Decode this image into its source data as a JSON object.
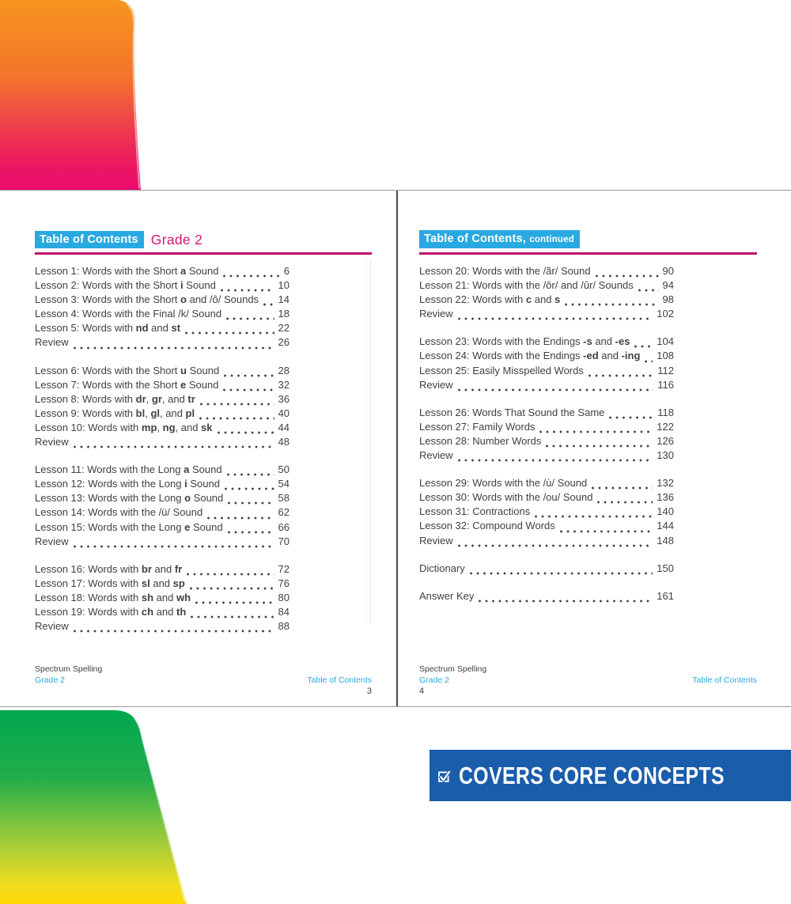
{
  "colors": {
    "cyan": "#29A9E1",
    "magenta_rule": "#C1116E",
    "pink_title": "#D4156F",
    "body_text": "#414042",
    "banner_blue": "#1A5DAB",
    "cover_top_gradient": [
      "#F7951F",
      "#F3752A",
      "#EF414B",
      "#EC1A5F",
      "#EB0A6F"
    ],
    "cover_bottom_gradient": [
      "#00A84F",
      "#22AD4A",
      "#A8CE38",
      "#F0DC1E",
      "#FFD905"
    ]
  },
  "left_page": {
    "header": {
      "badge": "Table of Contents",
      "title": "Grade 2"
    },
    "groups": [
      {
        "rows": [
          {
            "label": "Lesson 1: Words with the Short **a** Sound",
            "page": "6"
          },
          {
            "label": "Lesson 2: Words with the Short **i** Sound",
            "page": "10"
          },
          {
            "label": "Lesson 3: Words with the Short **o** and /ô/ Sounds",
            "page": "14"
          },
          {
            "label": "Lesson 4: Words with the Final /k/ Sound",
            "page": "18"
          },
          {
            "label": "Lesson 5: Words with **nd** and **st**",
            "page": "22"
          },
          {
            "label": "Review",
            "page": "26"
          }
        ]
      },
      {
        "rows": [
          {
            "label": "Lesson 6: Words with the Short **u** Sound",
            "page": "28"
          },
          {
            "label": "Lesson 7: Words with the Short **e** Sound",
            "page": "32"
          },
          {
            "label": "Lesson 8: Words with **dr**, **gr**, and **tr**",
            "page": "36"
          },
          {
            "label": "Lesson 9: Words with **bl**, **gl**, and **pl**",
            "page": "40"
          },
          {
            "label": "Lesson 10: Words with **mp**, **ng**, and **sk**",
            "page": "44"
          },
          {
            "label": "Review",
            "page": "48"
          }
        ]
      },
      {
        "rows": [
          {
            "label": "Lesson 11: Words with the Long **a** Sound",
            "page": "50"
          },
          {
            "label": "Lesson 12: Words with the Long **i** Sound",
            "page": "54"
          },
          {
            "label": "Lesson 13: Words with the Long **o** Sound",
            "page": "58"
          },
          {
            "label": "Lesson 14: Words with the /ü/ Sound",
            "page": "62"
          },
          {
            "label": "Lesson 15: Words with the Long **e** Sound",
            "page": "66"
          },
          {
            "label": "Review",
            "page": "70"
          }
        ]
      },
      {
        "rows": [
          {
            "label": "Lesson 16: Words with **br** and **fr**",
            "page": "72"
          },
          {
            "label": "Lesson 17: Words with **sl** and **sp**",
            "page": "76"
          },
          {
            "label": "Lesson 18: Words with **sh** and **wh**",
            "page": "80"
          },
          {
            "label": "Lesson 19: Words with **ch** and **th**",
            "page": "84"
          },
          {
            "label": "Review",
            "page": "88"
          }
        ]
      }
    ],
    "footer": {
      "series": "Spectrum Spelling",
      "grade": "Grade 2",
      "section": "Table of Contents",
      "page_number": "3"
    }
  },
  "right_page": {
    "header": {
      "badge": "Table of Contents,",
      "suffix": "continued"
    },
    "groups": [
      {
        "rows": [
          {
            "label": "Lesson 20: Words with the /ãr/ Sound",
            "page": "90"
          },
          {
            "label": "Lesson 21: Words with the /ôr/ and /ûr/ Sounds",
            "page": "94"
          },
          {
            "label": "Lesson 22: Words with **c** and **s**",
            "page": "98"
          },
          {
            "label": "Review",
            "page": "102"
          }
        ]
      },
      {
        "rows": [
          {
            "label": "Lesson 23: Words with the Endings **-s** and **-es**",
            "page": "104"
          },
          {
            "label": "Lesson 24: Words with the Endings **-ed** and **-ing**",
            "page": "108"
          },
          {
            "label": "Lesson 25: Easily Misspelled Words",
            "page": "112"
          },
          {
            "label": "Review",
            "page": "116"
          }
        ]
      },
      {
        "rows": [
          {
            "label": "Lesson 26: Words That Sound the Same",
            "page": "118"
          },
          {
            "label": "Lesson 27: Family Words",
            "page": "122"
          },
          {
            "label": "Lesson 28: Number Words",
            "page": "126"
          },
          {
            "label": "Review",
            "page": "130"
          }
        ]
      },
      {
        "rows": [
          {
            "label": "Lesson 29: Words with the /ù/ Sound",
            "page": "132"
          },
          {
            "label": "Lesson 30: Words with the /ou/ Sound",
            "page": "136"
          },
          {
            "label": "Lesson 31: Contractions",
            "page": "140"
          },
          {
            "label": "Lesson 32: Compound Words",
            "page": "144"
          },
          {
            "label": "Review",
            "page": "148"
          }
        ]
      },
      {
        "rows": [
          {
            "label": "Dictionary",
            "page": "150"
          }
        ]
      },
      {
        "rows": [
          {
            "label": "Answer Key",
            "page": "161"
          }
        ]
      }
    ],
    "footer": {
      "series": "Spectrum Spelling",
      "grade": "Grade 2",
      "section": "Table of Contents",
      "page_number": "4"
    }
  },
  "banner": {
    "label": "COVERS CORE CONCEPTS",
    "icon": "checkmark-icon"
  }
}
